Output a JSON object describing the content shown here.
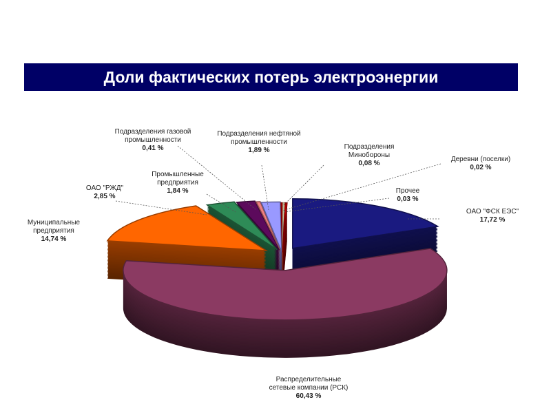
{
  "title": "Доли фактических потерь электроэнергии",
  "chart_data": {
    "type": "pie",
    "style": "3d-exploded",
    "title": "Доли фактических потерь электроэнергии",
    "unit": "%",
    "slices": [
      {
        "label": "ОАО \"ФСК ЕЭС\"",
        "value": 17.72,
        "value_text": "17,72 %",
        "color": "#1a1a80"
      },
      {
        "label": "Распределительные сетевые компании (РСК)",
        "label_lines": [
          "Распределительные",
          "сетевые компании (РСК)"
        ],
        "value": 60.43,
        "value_text": "60,43 %",
        "color": "#8b3a62"
      },
      {
        "label": "Муниципальные предприятия",
        "label_lines": [
          "Муниципальные",
          "предприятия"
        ],
        "value": 14.74,
        "value_text": "14,74 %",
        "color": "#ff6600"
      },
      {
        "label": "ОАО \"РЖД\"",
        "value": 2.85,
        "value_text": "2,85 %",
        "color": "#2e8b57"
      },
      {
        "label": "Промышленные предприятия",
        "label_lines": [
          "Промышленные",
          "предприятия"
        ],
        "value": 1.84,
        "value_text": "1,84 %",
        "color": "#5c0a5c"
      },
      {
        "label": "Подразделения газовой промышленности",
        "label_lines": [
          "Подразделения газовой",
          "промышленности"
        ],
        "value": 0.41,
        "value_text": "0,41 %",
        "color": "#f08080"
      },
      {
        "label": "Подразделения нефтяной промышленности",
        "label_lines": [
          "Подразделения нефтяной",
          "промышленности"
        ],
        "value": 1.89,
        "value_text": "1,89 %",
        "color": "#9999ff"
      },
      {
        "label": "Подразделения Минобороны",
        "label_lines": [
          "Подразделения",
          "Минобороны"
        ],
        "value": 0.08,
        "value_text": "0,08 %",
        "color": "#cc0000"
      },
      {
        "label": "Деревни (поселки)",
        "value": 0.02,
        "value_text": "0,02 %",
        "color": "#ffffcc"
      },
      {
        "label": "Прочее",
        "value": 0.03,
        "value_text": "0,03 %",
        "color": "#cc0000"
      }
    ]
  }
}
